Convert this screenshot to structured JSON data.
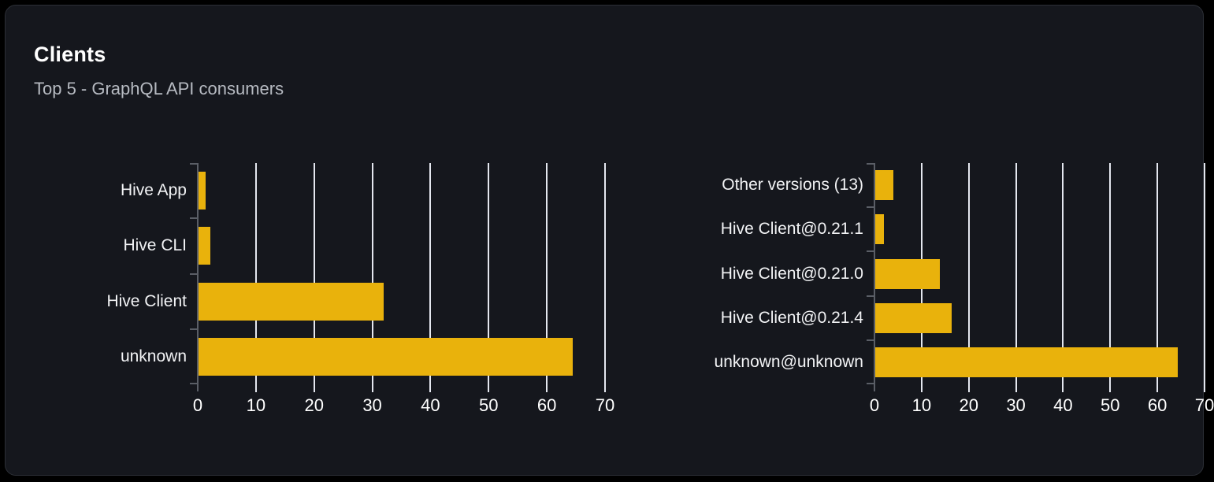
{
  "panel": {
    "title": "Clients",
    "subtitle": "Top 5 - GraphQL API consumers"
  },
  "colors": {
    "page_bg": "#000000",
    "card_bg": "#15171d",
    "card_border": "#2c2f36",
    "bar": "#e9b20c",
    "gridline": "#e4e7ef",
    "axis": "#5a5e66",
    "title_text": "#ffffff",
    "subtitle_text": "#b6bac1",
    "label_text": "#f2f3f5",
    "tick_text": "#ffffff"
  },
  "chart_data": [
    {
      "name": "clients",
      "type": "bar",
      "orientation": "horizontal",
      "categories": [
        "Hive App",
        "Hive CLI",
        "Hive Client",
        "unknown"
      ],
      "values": [
        1.4,
        2.2,
        32,
        64.4
      ],
      "xlim": [
        0,
        70
      ],
      "xticks": [
        0,
        10,
        20,
        30,
        40,
        50,
        60,
        70
      ],
      "grid": true,
      "legend": "none",
      "bar_color": "#e9b20c"
    },
    {
      "name": "client-versions",
      "type": "bar",
      "orientation": "horizontal",
      "categories": [
        "Other versions (13)",
        "Hive Client@0.21.1",
        "Hive Client@0.21.0",
        "Hive Client@0.21.4",
        "unknown@unknown"
      ],
      "values": [
        4,
        2,
        13.9,
        16.4,
        64.4
      ],
      "xlim": [
        0,
        70
      ],
      "xticks": [
        0,
        10,
        20,
        30,
        40,
        50,
        60,
        70
      ],
      "grid": true,
      "legend": "none",
      "bar_color": "#e9b20c"
    }
  ]
}
